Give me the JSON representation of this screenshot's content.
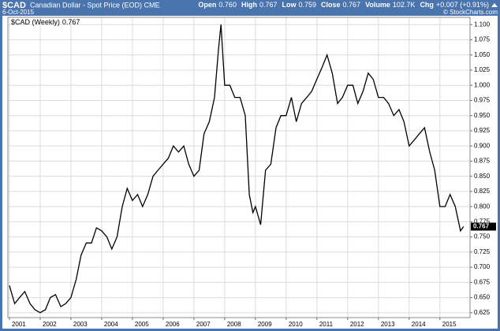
{
  "chart_data": {
    "type": "line",
    "symbol": "$CAD",
    "title": "Canadian Dollar - Spot Price (EOD) CME",
    "date": "6-Oct-2015",
    "quote": [
      {
        "label": "Open",
        "value": "0.760"
      },
      {
        "label": "High",
        "value": "0.767"
      },
      {
        "label": "Low",
        "value": "0.759"
      },
      {
        "label": "Close",
        "value": "0.767"
      },
      {
        "label": "Volume",
        "value": "102.7K"
      },
      {
        "label": "Chg",
        "value": "+0.007 (+0.91%)"
      }
    ],
    "watermark": "© StockCharts.com",
    "last_label": "0.767",
    "x": [
      2001.0,
      2001.17,
      2001.33,
      2001.5,
      2001.67,
      2001.83,
      2002.0,
      2002.17,
      2002.33,
      2002.5,
      2002.67,
      2002.83,
      2003.0,
      2003.17,
      2003.33,
      2003.5,
      2003.67,
      2003.83,
      2004.0,
      2004.17,
      2004.33,
      2004.5,
      2004.67,
      2004.83,
      2005.0,
      2005.17,
      2005.33,
      2005.5,
      2005.67,
      2005.83,
      2006.0,
      2006.17,
      2006.33,
      2006.5,
      2006.67,
      2006.83,
      2007.0,
      2007.17,
      2007.33,
      2007.5,
      2007.67,
      2007.8,
      2007.88,
      2008.0,
      2008.17,
      2008.33,
      2008.5,
      2008.67,
      2008.8,
      2008.92,
      2009.0,
      2009.17,
      2009.33,
      2009.5,
      2009.67,
      2009.83,
      2010.0,
      2010.17,
      2010.33,
      2010.5,
      2010.67,
      2010.83,
      2011.0,
      2011.17,
      2011.33,
      2011.5,
      2011.67,
      2011.83,
      2012.0,
      2012.17,
      2012.33,
      2012.5,
      2012.67,
      2012.83,
      2013.0,
      2013.17,
      2013.33,
      2013.5,
      2013.67,
      2013.83,
      2014.0,
      2014.17,
      2014.33,
      2014.5,
      2014.67,
      2014.83,
      2015.0,
      2015.17,
      2015.33,
      2015.5,
      2015.67,
      2015.77
    ],
    "series": [
      {
        "name": "$CAD (Weekly)",
        "color": "#000000",
        "values": [
          0.67,
          0.64,
          0.65,
          0.66,
          0.64,
          0.63,
          0.625,
          0.63,
          0.65,
          0.655,
          0.635,
          0.64,
          0.65,
          0.68,
          0.72,
          0.74,
          0.74,
          0.765,
          0.76,
          0.75,
          0.73,
          0.75,
          0.8,
          0.83,
          0.81,
          0.82,
          0.8,
          0.82,
          0.85,
          0.86,
          0.87,
          0.88,
          0.9,
          0.89,
          0.9,
          0.87,
          0.85,
          0.86,
          0.92,
          0.94,
          0.98,
          1.06,
          1.1,
          1.0,
          1.0,
          0.98,
          0.98,
          0.95,
          0.82,
          0.79,
          0.8,
          0.77,
          0.86,
          0.87,
          0.93,
          0.95,
          0.95,
          0.98,
          0.94,
          0.97,
          0.98,
          0.99,
          1.01,
          1.03,
          1.05,
          1.02,
          0.97,
          0.98,
          1.0,
          1.0,
          0.97,
          0.99,
          1.02,
          1.01,
          0.98,
          0.98,
          0.97,
          0.95,
          0.96,
          0.94,
          0.9,
          0.91,
          0.92,
          0.93,
          0.89,
          0.86,
          0.8,
          0.8,
          0.82,
          0.8,
          0.76,
          0.767
        ]
      }
    ],
    "xlim": [
      2000.95,
      2015.98
    ],
    "xticks": [
      2001,
      2002,
      2003,
      2004,
      2005,
      2006,
      2007,
      2008,
      2009,
      2010,
      2011,
      2012,
      2013,
      2014,
      2015
    ],
    "ylim": [
      0.617,
      1.112
    ],
    "yticks": [
      0.625,
      {
        "value": 0.65,
        "label": "0.650"
      },
      0.675,
      {
        "value": 0.7,
        "label": "0.700"
      },
      0.725,
      {
        "value": 0.75,
        "label": "0.750"
      },
      0.775,
      {
        "value": 0.8,
        "label": "0.800"
      },
      0.825,
      {
        "value": 0.85,
        "label": "0.850"
      },
      0.875,
      {
        "value": 0.9,
        "label": "0.900"
      },
      0.925,
      {
        "value": 0.95,
        "label": "0.950"
      },
      0.975,
      {
        "value": 1.0,
        "label": "1.000"
      },
      1.025,
      {
        "value": 1.05,
        "label": "1.050"
      },
      1.075,
      {
        "value": 1.1,
        "label": "1.100"
      }
    ],
    "grid": true
  }
}
